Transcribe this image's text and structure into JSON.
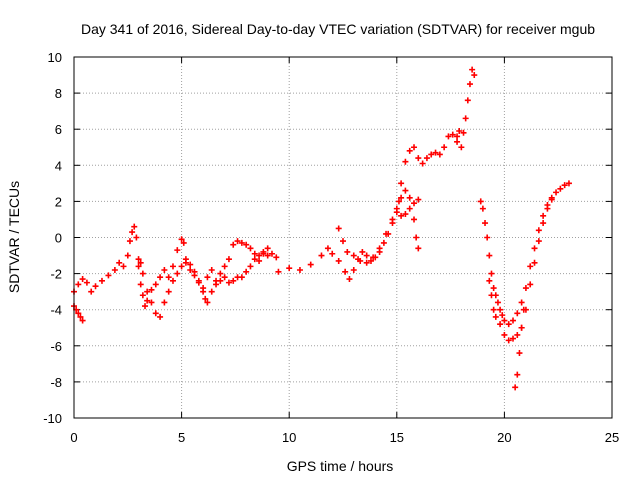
{
  "chart_data": {
    "type": "scatter",
    "title": "Day 341 of 2016, Sidereal Day-to-day VTEC variation (SDTVAR) for receiver mgub",
    "xlabel": "GPS time / hours",
    "ylabel": "SDTVAR / TECUs",
    "xlim": [
      0,
      25
    ],
    "ylim": [
      -10,
      10
    ],
    "x_ticks": [
      "0",
      "5",
      "10",
      "15",
      "20",
      "25"
    ],
    "y_ticks": [
      "-10",
      "-8",
      "-6",
      "-4",
      "-2",
      "0",
      "2",
      "4",
      "6",
      "8",
      "10"
    ],
    "grid": true,
    "marker": "+",
    "color": "#ff0000",
    "series": [
      {
        "points": [
          [
            0.0,
            -3.0
          ],
          [
            0.2,
            -2.6
          ],
          [
            0.4,
            -2.3
          ],
          [
            0.6,
            -2.5
          ],
          [
            0.8,
            -3.0
          ],
          [
            1.0,
            -2.7
          ],
          [
            1.3,
            -2.4
          ],
          [
            1.6,
            -2.1
          ],
          [
            1.9,
            -1.8
          ],
          [
            2.1,
            -1.4
          ],
          [
            2.3,
            -1.6
          ],
          [
            2.5,
            -1.0
          ],
          [
            2.6,
            -0.2
          ],
          [
            2.7,
            0.3
          ],
          [
            2.8,
            0.6
          ],
          [
            2.9,
            0.0
          ],
          [
            3.0,
            -1.6
          ],
          [
            3.1,
            -2.6
          ],
          [
            3.2,
            -3.2
          ],
          [
            3.3,
            -3.8
          ],
          [
            3.4,
            -3.5
          ],
          [
            3.6,
            -2.9
          ],
          [
            3.8,
            -2.6
          ],
          [
            4.0,
            -2.2
          ],
          [
            4.2,
            -1.8
          ],
          [
            4.4,
            -2.2
          ],
          [
            4.6,
            -1.6
          ],
          [
            4.8,
            -0.7
          ],
          [
            5.0,
            -0.1
          ],
          [
            5.1,
            -0.3
          ],
          [
            5.2,
            -1.2
          ],
          [
            5.4,
            -1.8
          ],
          [
            5.6,
            -2.1
          ],
          [
            5.8,
            -2.5
          ],
          [
            6.0,
            -2.8
          ],
          [
            6.2,
            -2.2
          ],
          [
            6.4,
            -1.8
          ],
          [
            6.6,
            -2.4
          ],
          [
            6.8,
            -2.0
          ],
          [
            7.0,
            -1.6
          ],
          [
            7.2,
            -1.2
          ],
          [
            7.4,
            -0.4
          ],
          [
            7.6,
            -0.2
          ],
          [
            7.8,
            -0.3
          ],
          [
            8.0,
            -0.4
          ],
          [
            8.2,
            -0.6
          ],
          [
            8.4,
            -0.9
          ],
          [
            8.6,
            -1.3
          ],
          [
            8.8,
            -0.9
          ],
          [
            9.0,
            -0.6
          ],
          [
            9.2,
            -0.9
          ],
          [
            9.4,
            -1.1
          ]
        ]
      },
      {
        "points": [
          [
            0.0,
            -3.8
          ],
          [
            0.1,
            -4.0
          ],
          [
            0.2,
            -4.2
          ],
          [
            0.3,
            -4.4
          ],
          [
            0.4,
            -4.6
          ],
          [
            3.0,
            -1.2
          ],
          [
            3.1,
            -1.4
          ],
          [
            3.2,
            -2.0
          ],
          [
            3.4,
            -3.0
          ],
          [
            3.6,
            -3.6
          ],
          [
            3.8,
            -4.2
          ],
          [
            4.0,
            -4.4
          ],
          [
            4.2,
            -3.6
          ],
          [
            4.4,
            -3.0
          ],
          [
            4.6,
            -2.4
          ],
          [
            4.8,
            -2.0
          ],
          [
            5.0,
            -1.6
          ],
          [
            5.2,
            -1.4
          ],
          [
            5.4,
            -1.5
          ],
          [
            5.6,
            -1.9
          ],
          [
            5.8,
            -2.4
          ],
          [
            6.0,
            -3.0
          ],
          [
            6.1,
            -3.4
          ],
          [
            6.2,
            -3.6
          ],
          [
            6.4,
            -3.0
          ],
          [
            6.6,
            -2.6
          ],
          [
            6.8,
            -2.4
          ],
          [
            7.0,
            -2.2
          ],
          [
            7.2,
            -2.5
          ],
          [
            7.4,
            -2.4
          ],
          [
            7.6,
            -2.2
          ],
          [
            7.8,
            -2.2
          ],
          [
            8.0,
            -1.9
          ],
          [
            8.2,
            -1.6
          ],
          [
            8.4,
            -1.2
          ],
          [
            8.6,
            -1.0
          ],
          [
            8.8,
            -0.8
          ],
          [
            9.0,
            -1.0
          ]
        ]
      },
      {
        "points": [
          [
            9.5,
            -1.9
          ],
          [
            10.0,
            -1.7
          ],
          [
            10.5,
            -1.8
          ],
          [
            11.0,
            -1.5
          ],
          [
            11.5,
            -1.0
          ],
          [
            11.8,
            -0.6
          ],
          [
            12.0,
            -0.9
          ],
          [
            12.3,
            -1.3
          ],
          [
            12.6,
            -1.9
          ],
          [
            12.8,
            -2.3
          ],
          [
            13.0,
            -1.8
          ],
          [
            13.2,
            -1.2
          ],
          [
            13.4,
            -0.8
          ],
          [
            13.6,
            -1.0
          ],
          [
            13.8,
            -1.3
          ],
          [
            14.0,
            -1.1
          ],
          [
            14.2,
            -0.8
          ],
          [
            14.4,
            -0.3
          ],
          [
            14.6,
            0.2
          ],
          [
            14.8,
            0.8
          ],
          [
            15.0,
            1.6
          ],
          [
            15.2,
            2.2
          ],
          [
            15.4,
            2.6
          ],
          [
            15.6,
            2.2
          ],
          [
            15.8,
            1.0
          ],
          [
            15.9,
            0.0
          ],
          [
            16.0,
            -0.6
          ],
          [
            15.0,
            1.4
          ],
          [
            15.2,
            1.2
          ],
          [
            15.4,
            1.3
          ],
          [
            15.6,
            1.6
          ],
          [
            15.8,
            1.9
          ],
          [
            16.0,
            2.1
          ],
          [
            12.3,
            0.5
          ],
          [
            12.5,
            -0.2
          ],
          [
            12.7,
            -0.8
          ],
          [
            13.0,
            -1.0
          ],
          [
            13.3,
            -1.3
          ],
          [
            13.6,
            -1.4
          ],
          [
            13.9,
            -1.1
          ],
          [
            14.2,
            -0.6
          ],
          [
            14.5,
            0.2
          ],
          [
            14.8,
            1.0
          ],
          [
            15.1,
            2.0
          ]
        ]
      },
      {
        "points": [
          [
            15.2,
            3.0
          ],
          [
            15.4,
            4.2
          ],
          [
            15.6,
            4.8
          ],
          [
            15.8,
            5.0
          ],
          [
            16.0,
            4.4
          ],
          [
            16.2,
            4.1
          ],
          [
            16.4,
            4.4
          ],
          [
            16.6,
            4.6
          ],
          [
            16.8,
            4.7
          ],
          [
            17.0,
            4.6
          ],
          [
            17.2,
            5.0
          ],
          [
            17.4,
            5.6
          ],
          [
            17.6,
            5.7
          ],
          [
            17.8,
            5.3
          ],
          [
            18.0,
            5.0
          ],
          [
            18.1,
            5.8
          ],
          [
            18.2,
            6.6
          ],
          [
            18.3,
            7.6
          ],
          [
            18.4,
            8.5
          ],
          [
            18.5,
            9.3
          ],
          [
            18.6,
            9.0
          ],
          [
            17.8,
            5.6
          ],
          [
            17.9,
            5.9
          ]
        ]
      },
      {
        "points": [
          [
            18.9,
            2.0
          ],
          [
            19.0,
            1.6
          ],
          [
            19.1,
            0.8
          ],
          [
            19.2,
            0.0
          ],
          [
            19.3,
            -1.0
          ],
          [
            19.4,
            -2.0
          ],
          [
            19.5,
            -2.8
          ],
          [
            19.6,
            -3.2
          ],
          [
            19.7,
            -3.6
          ],
          [
            19.8,
            -4.0
          ],
          [
            19.9,
            -4.3
          ],
          [
            20.0,
            -4.6
          ],
          [
            20.2,
            -4.8
          ],
          [
            20.4,
            -4.6
          ],
          [
            20.6,
            -4.2
          ],
          [
            20.8,
            -3.6
          ],
          [
            21.0,
            -2.8
          ],
          [
            21.2,
            -1.6
          ],
          [
            21.4,
            -0.6
          ],
          [
            21.6,
            0.4
          ],
          [
            21.8,
            1.2
          ],
          [
            22.0,
            1.8
          ],
          [
            22.2,
            2.2
          ],
          [
            22.4,
            2.5
          ],
          [
            22.6,
            2.7
          ],
          [
            22.8,
            2.9
          ],
          [
            23.0,
            3.0
          ],
          [
            19.3,
            -2.4
          ],
          [
            19.4,
            -3.2
          ],
          [
            19.5,
            -4.0
          ],
          [
            19.6,
            -4.4
          ],
          [
            19.8,
            -4.8
          ],
          [
            20.0,
            -5.4
          ],
          [
            20.2,
            -5.7
          ],
          [
            20.4,
            -5.6
          ],
          [
            20.6,
            -5.4
          ],
          [
            20.8,
            -5.0
          ],
          [
            21.0,
            -4.0
          ],
          [
            21.2,
            -2.6
          ],
          [
            21.4,
            -1.4
          ],
          [
            21.6,
            -0.2
          ],
          [
            21.8,
            0.8
          ],
          [
            22.0,
            1.6
          ],
          [
            22.2,
            2.1
          ],
          [
            20.5,
            -8.3
          ],
          [
            20.6,
            -7.6
          ],
          [
            20.7,
            -6.4
          ],
          [
            20.8,
            -5.0
          ],
          [
            20.9,
            -4.0
          ]
        ]
      }
    ]
  }
}
